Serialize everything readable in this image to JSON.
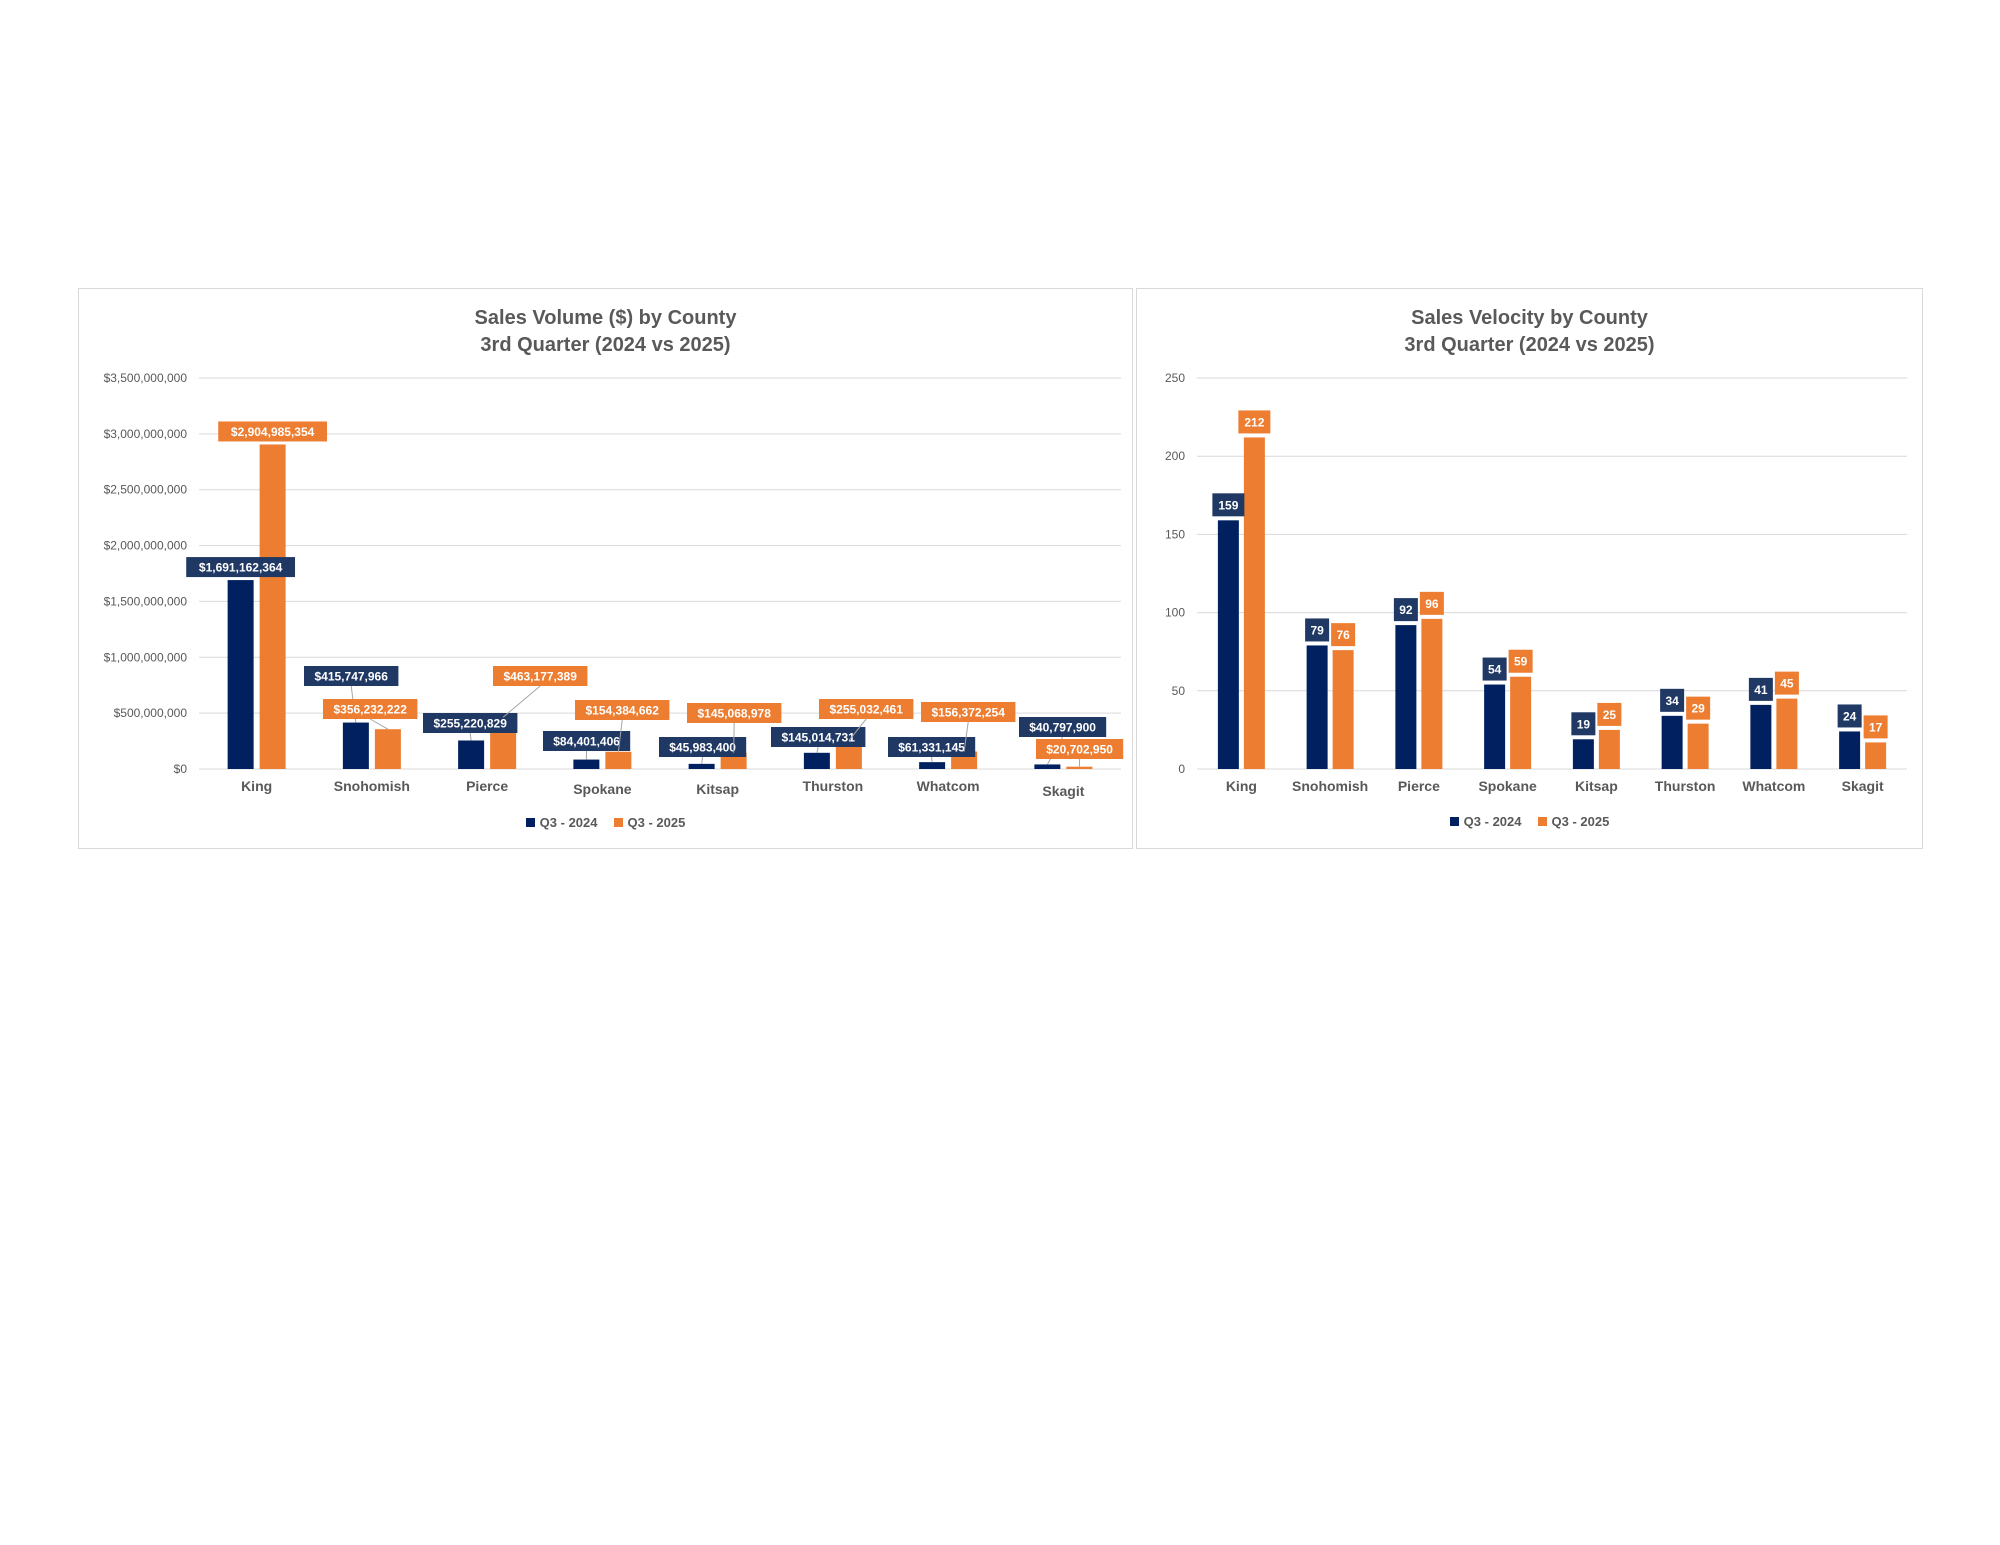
{
  "colors": {
    "q3_2024": "#002060",
    "q3_2025": "#ED7D31",
    "label_2024": "#203864",
    "gridline": "#d9d9d9",
    "text": "#595959"
  },
  "legend": {
    "series_2024": "Q3 - 2024",
    "series_2025": "Q3 - 2025"
  },
  "chart_data": [
    {
      "type": "bar",
      "title": "Sales Volume ($) by County",
      "subtitle": "3rd Quarter (2024 vs 2025)",
      "categories": [
        "King",
        "Snohomish",
        "Pierce",
        "Spokane",
        "Kitsap",
        "Thurston",
        "Whatcom",
        "Skagit"
      ],
      "series": [
        {
          "name": "Q3 - 2024",
          "values": [
            1691162364,
            415747966,
            255220829,
            84401406,
            45983400,
            145014731,
            61331145,
            40797900
          ]
        },
        {
          "name": "Q3 - 2025",
          "values": [
            2904985354,
            356232222,
            463177389,
            154384662,
            145068978,
            255032461,
            156372254,
            20702950
          ]
        }
      ],
      "data_labels": [
        [
          "$1,691,162,364",
          "$415,747,966",
          "$255,220,829",
          "$84,401,406",
          "$45,983,400",
          "$145,014,731",
          "$61,331,145",
          "$40,797,900"
        ],
        [
          "$2,904,985,354",
          "$356,232,222",
          "$463,177,389",
          "$154,384,662",
          "$145,068,978",
          "$255,032,461",
          "$156,372,254",
          "$20,702,950"
        ]
      ],
      "ylim": [
        0,
        3500000000
      ],
      "yticks": [
        0,
        500000000,
        1000000000,
        1500000000,
        2000000000,
        2500000000,
        3000000000,
        3500000000
      ],
      "ytick_labels": [
        "$0",
        "$500,000,000",
        "$1,000,000,000",
        "$1,500,000,000",
        "$2,000,000,000",
        "$2,500,000,000",
        "$3,000,000,000",
        "$3,500,000,000"
      ],
      "grid": true,
      "legend_position": "bottom"
    },
    {
      "type": "bar",
      "title": "Sales Velocity by County",
      "subtitle": "3rd Quarter (2024 vs 2025)",
      "categories": [
        "King",
        "Snohomish",
        "Pierce",
        "Spokane",
        "Kitsap",
        "Thurston",
        "Whatcom",
        "Skagit"
      ],
      "series": [
        {
          "name": "Q3 - 2024",
          "values": [
            159,
            79,
            92,
            54,
            19,
            34,
            41,
            24
          ]
        },
        {
          "name": "Q3 - 2025",
          "values": [
            212,
            76,
            96,
            59,
            25,
            29,
            45,
            17
          ]
        }
      ],
      "data_labels": [
        [
          "159",
          "79",
          "92",
          "54",
          "19",
          "34",
          "41",
          "24"
        ],
        [
          "212",
          "76",
          "96",
          "59",
          "25",
          "29",
          "45",
          "17"
        ]
      ],
      "ylim": [
        0,
        250
      ],
      "yticks": [
        0,
        50,
        100,
        150,
        200,
        250
      ],
      "ytick_labels": [
        "0",
        "50",
        "100",
        "150",
        "200",
        "250"
      ],
      "grid": true,
      "legend_position": "bottom"
    }
  ]
}
